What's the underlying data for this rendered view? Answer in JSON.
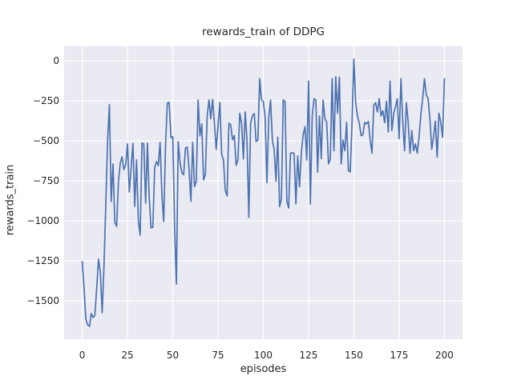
{
  "figure": {
    "title": "rewards_train of DDPG",
    "xlabel": "episodes",
    "ylabel": "rewards_train"
  },
  "style": {
    "figure_bg": "#ffffff",
    "axes_bg": "#eaeaf2",
    "grid_color": "#ffffff",
    "line_color": "#4c72b0",
    "text_color": "#262626"
  },
  "chart_data": {
    "type": "line",
    "title": "rewards_train of DDPG",
    "xlabel": "episodes",
    "ylabel": "rewards_train",
    "x_ticks": [
      0,
      25,
      50,
      75,
      100,
      125,
      150,
      175,
      200
    ],
    "y_ticks": [
      0,
      -250,
      -500,
      -750,
      -1000,
      -1250,
      -1500
    ],
    "xlim": [
      -10,
      210
    ],
    "ylim": [
      -1740,
      92
    ],
    "grid": true,
    "legend": false,
    "series": [
      {
        "name": "rewards_train",
        "x_start": 0,
        "x_step": 1,
        "values": [
          -1255,
          -1420,
          -1615,
          -1650,
          -1660,
          -1580,
          -1605,
          -1590,
          -1420,
          -1240,
          -1320,
          -1575,
          -1290,
          -900,
          -500,
          -275,
          -880,
          -645,
          -1010,
          -1035,
          -755,
          -640,
          -600,
          -680,
          -650,
          -520,
          -820,
          -670,
          -515,
          -910,
          -620,
          -1000,
          -1090,
          -515,
          -520,
          -890,
          -515,
          -855,
          -1045,
          -1040,
          -670,
          -630,
          -655,
          -510,
          -840,
          -1005,
          -530,
          -265,
          -260,
          -480,
          -475,
          -1030,
          -1395,
          -505,
          -635,
          -700,
          -712,
          -545,
          -540,
          -680,
          -878,
          -510,
          -787,
          -753,
          -245,
          -470,
          -395,
          -745,
          -710,
          -345,
          -245,
          -362,
          -242,
          -390,
          -553,
          -405,
          -260,
          -585,
          -620,
          -810,
          -845,
          -390,
          -400,
          -495,
          -468,
          -653,
          -620,
          -328,
          -390,
          -613,
          -320,
          -500,
          -978,
          -390,
          -345,
          -330,
          -505,
          -495,
          -112,
          -245,
          -255,
          -353,
          -762,
          -357,
          -245,
          -495,
          -555,
          -753,
          -478,
          -912,
          -862,
          -245,
          -255,
          -878,
          -920,
          -578,
          -575,
          -580,
          -895,
          -595,
          -787,
          -578,
          -462,
          -412,
          -620,
          -128,
          -895,
          -345,
          -237,
          -245,
          -695,
          -345,
          -612,
          -245,
          -362,
          -385,
          -645,
          -612,
          -112,
          -562,
          -100,
          -328,
          -103,
          -645,
          -495,
          -562,
          -385,
          -687,
          -695,
          -385,
          10,
          -262,
          -345,
          -390,
          -468,
          -462,
          -385,
          -395,
          -380,
          -495,
          -578,
          -278,
          -262,
          -320,
          -237,
          -345,
          -312,
          -387,
          -253,
          -445,
          -128,
          -437,
          -328,
          -287,
          -237,
          -487,
          -112,
          -378,
          -562,
          -262,
          -385,
          -578,
          -437,
          -562,
          -520,
          -578,
          -478,
          -337,
          -237,
          -112,
          -215,
          -237,
          -362,
          -553,
          -478,
          -378,
          -603,
          -328,
          -385,
          -478,
          -112
        ]
      }
    ]
  }
}
